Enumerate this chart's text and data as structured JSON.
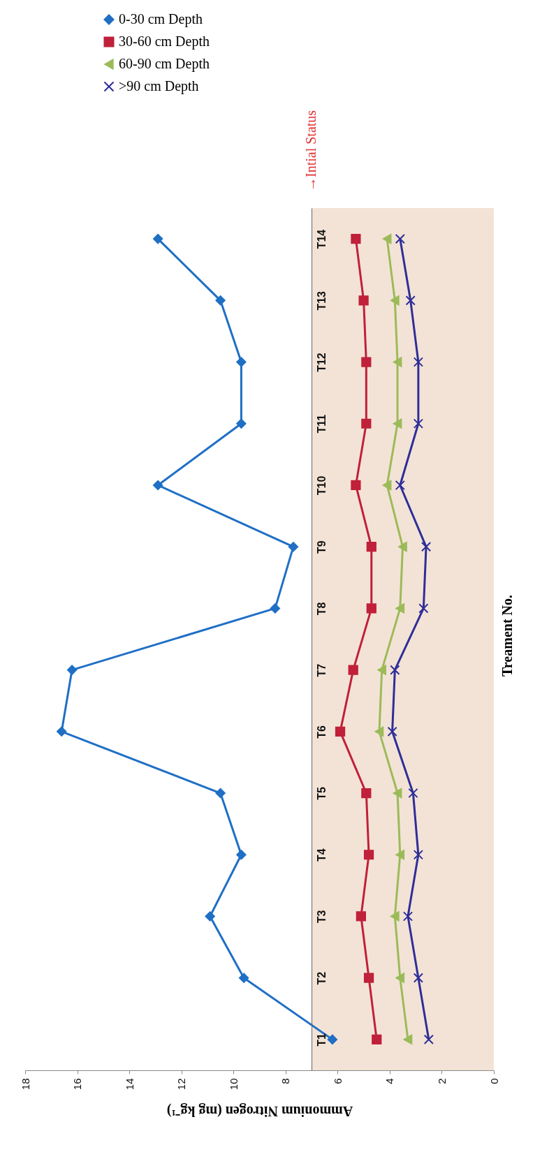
{
  "chart_data": {
    "type": "line",
    "orientation": "horizontal",
    "xlabel": "Ammonium Nitrogen (mg kg⁻¹)",
    "ylabel": "Treament No.",
    "categories": [
      "T14",
      "T13",
      "T12",
      "T11",
      "T10",
      "T9",
      "T8",
      "T7",
      "T6",
      "T5",
      "T4",
      "T3",
      "T2",
      "T1"
    ],
    "series": [
      {
        "name": "0-30 cm Depth",
        "color": "#1f6fc5",
        "marker": "diamond",
        "values": [
          12.9,
          10.5,
          9.7,
          9.7,
          12.9,
          7.7,
          8.4,
          16.2,
          16.6,
          10.5,
          9.7,
          10.9,
          9.6,
          6.2
        ]
      },
      {
        "name": "30-60 cm Depth",
        "color": "#c0203a",
        "marker": "square",
        "values": [
          5.3,
          5.0,
          4.9,
          4.9,
          5.3,
          4.7,
          4.7,
          5.4,
          5.9,
          4.9,
          4.8,
          5.1,
          4.8,
          4.5
        ]
      },
      {
        "name": "60-90 cm Depth",
        "color": "#9bbb59",
        "marker": "triangle",
        "values": [
          4.1,
          3.8,
          3.7,
          3.7,
          4.1,
          3.5,
          3.6,
          4.3,
          4.4,
          3.7,
          3.6,
          3.8,
          3.6,
          3.3
        ]
      },
      {
        "name": ">90 cm Depth",
        "color": "#2e2e99",
        "marker": "cross",
        "values": [
          3.6,
          3.2,
          2.9,
          2.9,
          3.6,
          2.6,
          2.7,
          3.8,
          3.9,
          3.1,
          2.9,
          3.3,
          2.9,
          2.5
        ]
      }
    ],
    "xlim": [
      18,
      0
    ],
    "xticks": [
      18,
      16,
      14,
      12,
      10,
      8,
      6,
      4,
      2,
      0
    ],
    "bands": [
      {
        "axis": "x",
        "from": 0,
        "to": 7,
        "label": "→Intial Status",
        "color": "#f2e0d2"
      }
    ],
    "grid": false,
    "legend": "top",
    "line_style": "solid"
  }
}
